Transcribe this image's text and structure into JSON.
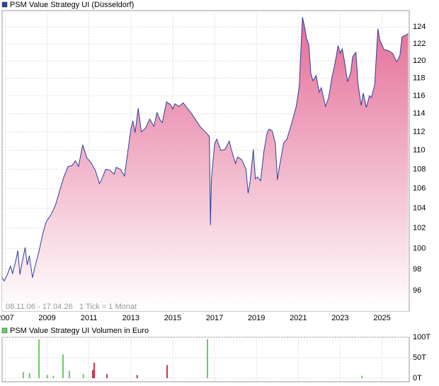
{
  "chart_data": [
    {
      "type": "area",
      "title": "PSM Value Strategy UI (Düsseldorf)",
      "annotations": [
        "08.11.06 - 17.04.26",
        "1 Tick = 1 Monat"
      ],
      "log_scale": true,
      "grid": true,
      "color": "#2b3f9b",
      "fill": "#e46c96",
      "xlim": [
        2006.85,
        2026.3
      ],
      "xticks": [
        2007,
        2009,
        2011,
        2013,
        2015,
        2017,
        2019,
        2021,
        2023,
        2025
      ],
      "ylim": [
        94.1,
        126
      ],
      "yticks": [
        96,
        98,
        100,
        102,
        104,
        106,
        108,
        110,
        112,
        114,
        116,
        118,
        120,
        122,
        124
      ],
      "x": [
        2006.85,
        2006.95,
        2007.1,
        2007.25,
        2007.35,
        2007.5,
        2007.6,
        2007.7,
        2007.8,
        2007.95,
        2008.05,
        2008.15,
        2008.3,
        2008.45,
        2008.6,
        2008.8,
        2008.95,
        2009.2,
        2009.4,
        2009.6,
        2009.8,
        2010.0,
        2010.2,
        2010.35,
        2010.5,
        2010.7,
        2010.9,
        2011.1,
        2011.3,
        2011.5,
        2011.6,
        2011.8,
        2012.0,
        2012.2,
        2012.3,
        2012.5,
        2012.7,
        2012.85,
        2013.0,
        2013.1,
        2013.2,
        2013.35,
        2013.5,
        2013.7,
        2013.9,
        2014.1,
        2014.25,
        2014.4,
        2014.5,
        2014.7,
        2014.9,
        2015.0,
        2015.1,
        2015.3,
        2015.5,
        2015.7,
        2015.9,
        2016.1,
        2016.3,
        2016.5,
        2016.6,
        2016.75,
        2016.8,
        2016.85,
        2017.0,
        2017.1,
        2017.3,
        2017.5,
        2017.7,
        2017.8,
        2018.0,
        2018.1,
        2018.3,
        2018.5,
        2018.6,
        2018.7,
        2018.85,
        2018.95,
        2019.05,
        2019.2,
        2019.35,
        2019.5,
        2019.6,
        2019.75,
        2019.9,
        2020.0,
        2020.1,
        2020.3,
        2020.45,
        2020.6,
        2020.75,
        2020.9,
        2021.05,
        2021.1,
        2021.2,
        2021.3,
        2021.4,
        2021.5,
        2021.6,
        2021.7,
        2021.85,
        2022.0,
        2022.1,
        2022.3,
        2022.45,
        2022.6,
        2022.75,
        2022.9,
        2023.0,
        2023.1,
        2023.2,
        2023.35,
        2023.5,
        2023.6,
        2023.75,
        2023.85,
        2024.0,
        2024.1,
        2024.25,
        2024.4,
        2024.5,
        2024.65,
        2024.8,
        2024.9,
        2025.1,
        2025.3,
        2025.5,
        2025.7,
        2025.85,
        2025.95,
        2026.25
      ],
      "values": [
        97.2,
        96.9,
        97.5,
        98.3,
        97.6,
        98.8,
        99.8,
        97.5,
        98.6,
        100.1,
        98.4,
        99.3,
        97.2,
        98.5,
        99.6,
        101.5,
        102.6,
        103.4,
        104.3,
        105.8,
        107.2,
        108.3,
        108.4,
        108.9,
        108.3,
        110.6,
        109.2,
        108.7,
        107.9,
        106.5,
        106.9,
        108.0,
        107.9,
        107.5,
        108.2,
        108.0,
        107.3,
        109.8,
        112.3,
        113.2,
        111.9,
        114.6,
        112.0,
        112.4,
        113.4,
        112.6,
        114.1,
        113.3,
        113.0,
        115.3,
        115.0,
        114.5,
        115.1,
        114.8,
        115.2,
        114.6,
        114.0,
        113.3,
        112.6,
        112.1,
        111.9,
        111.5,
        102.3,
        107.0,
        110.7,
        111.2,
        110.0,
        110.1,
        111.0,
        110.1,
        108.6,
        109.3,
        109.0,
        108.0,
        105.5,
        106.8,
        110.1,
        107.0,
        107.2,
        106.8,
        109.8,
        111.8,
        112.3,
        112.1,
        110.8,
        106.9,
        108.3,
        110.8,
        111.2,
        112.3,
        113.5,
        114.8,
        117.1,
        120.2,
        125.2,
        124.0,
        122.6,
        121.9,
        118.5,
        117.7,
        118.3,
        116.4,
        116.9,
        114.8,
        115.8,
        118.0,
        119.7,
        121.8,
        120.9,
        121.4,
        120.0,
        117.6,
        118.6,
        120.5,
        121.0,
        117.4,
        114.9,
        116.3,
        114.7,
        116.0,
        115.8,
        117.3,
        123.8,
        122.4,
        121.3,
        121.2,
        120.9,
        119.9,
        120.6,
        122.8,
        123.2
      ]
    },
    {
      "type": "bar",
      "title": "PSM Value Strategy UI Volumen in Euro",
      "grid": true,
      "color": "#66cc66",
      "xlim": [
        2006.85,
        2026.3
      ],
      "xticks": [
        2007,
        2009,
        2011,
        2013,
        2015,
        2017,
        2019,
        2021,
        2023,
        2025
      ],
      "ylim": [
        -8600,
        100000
      ],
      "yticks": [
        {
          "value": 0,
          "label": "0T"
        },
        {
          "value": 50000,
          "label": "50T"
        },
        {
          "value": 100000,
          "label": "100T"
        }
      ],
      "x": [
        2007.86,
        2008.16,
        2008.61,
        2009.0,
        2009.3,
        2009.76,
        2010.06,
        2010.73,
        2011.18,
        2011.25,
        2011.86,
        2013.3,
        2014.73,
        2016.66,
        2024.04
      ],
      "values": [
        15000,
        12000,
        95000,
        8000,
        6000,
        58000,
        18000,
        10000,
        20000,
        38000,
        10000,
        8000,
        32000,
        95000,
        6000
      ],
      "colors": [
        "#66cc66",
        "#66cc66",
        "#66cc66",
        "#66cc66",
        "#66cc66",
        "#66cc66",
        "#66cc66",
        "#66cc66",
        "#cc3344",
        "#cc3344",
        "#cc3344",
        "#cc3344",
        "#cc3344",
        "#66cc66",
        "#66cc66"
      ]
    }
  ]
}
